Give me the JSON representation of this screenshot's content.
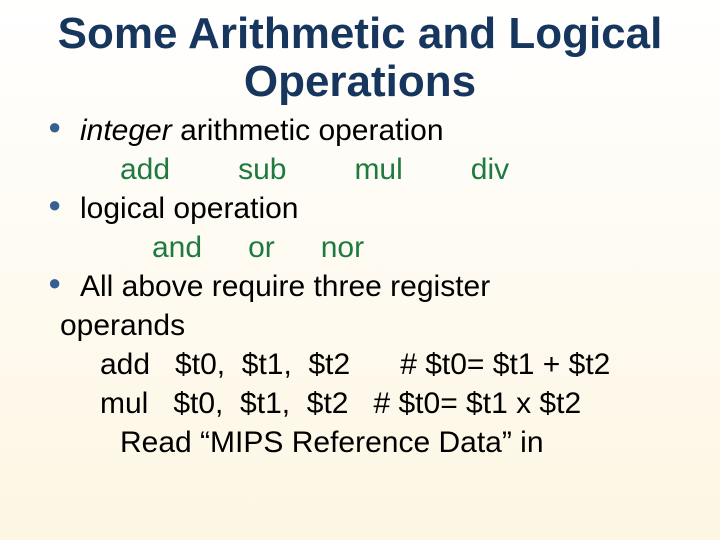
{
  "colors": {
    "title": "#17365d",
    "body": "#000000",
    "ops": "#1f7a3f",
    "bullet": "#376092",
    "background_top": "#ffffff",
    "background_bottom": "#fdf6e3"
  },
  "title": "Some Arithmetic and Logical Operations",
  "bullets": {
    "b1_italic": "integer",
    "b1_rest": " arithmetic operation",
    "ops1": {
      "a": "add",
      "b": "sub",
      "c": "mul",
      "d": "div"
    },
    "b2": "logical operation",
    "ops2": {
      "a": "and",
      "b": "or",
      "c": "nor"
    },
    "b3_line1": "All above require three register",
    "b3_line2": "operands",
    "code1": "add   $t0,  $t1,  $t2      # $t0= $t1 + $t2",
    "code2": "mul   $t0,  $t1,  $t2   # $t0= $t1 x $t2",
    "ref": "Read “MIPS Reference Data” in"
  }
}
